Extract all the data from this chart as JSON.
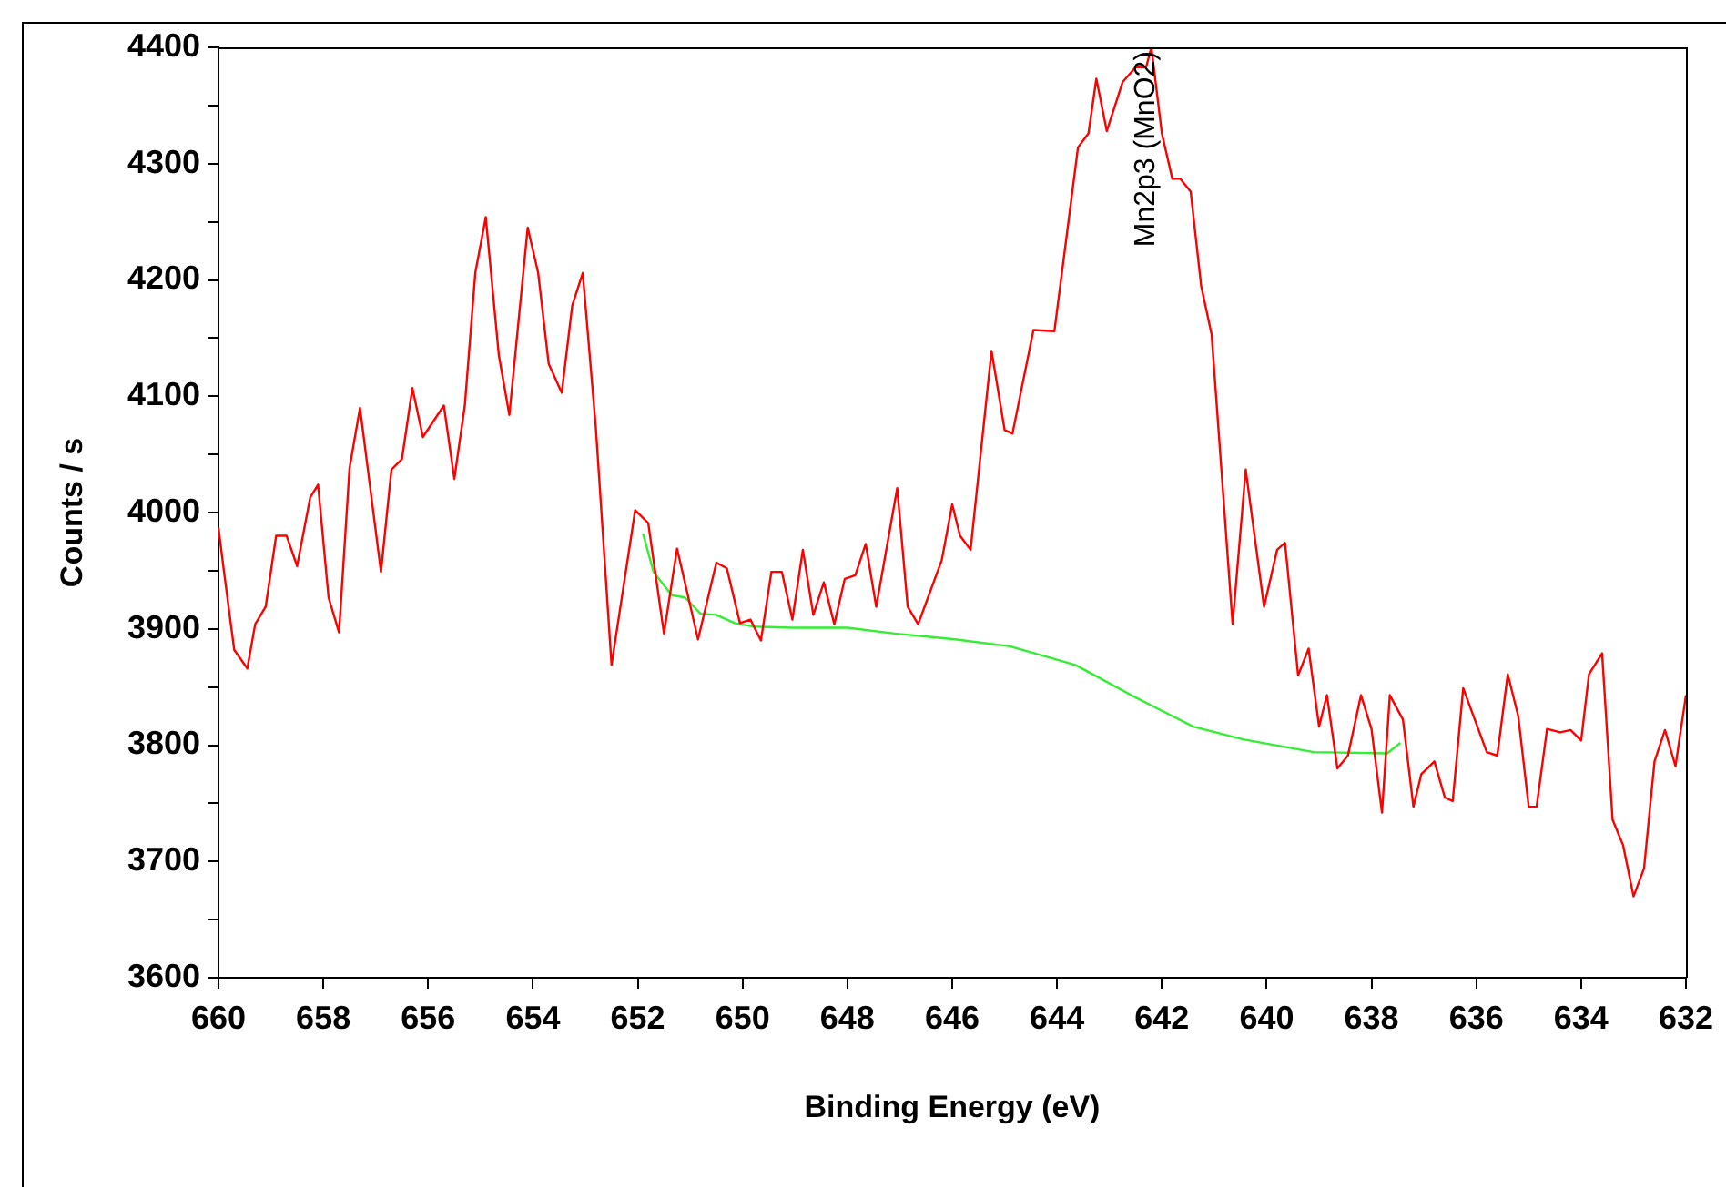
{
  "chart_data": {
    "type": "line",
    "xlabel": "Binding Energy (eV)",
    "ylabel": "Counts / s",
    "xlim": [
      660,
      632
    ],
    "ylim": [
      3600,
      4400
    ],
    "xticks": [
      660,
      658,
      656,
      654,
      652,
      650,
      648,
      646,
      644,
      642,
      640,
      638,
      636,
      634,
      632
    ],
    "yticks": [
      3600,
      {
        "value": 3650,
        "label": null
      },
      3700,
      {
        "value": 3750,
        "label": null
      },
      3800,
      {
        "value": 3850,
        "label": null
      },
      3900,
      {
        "value": 3950,
        "label": null
      },
      4000,
      {
        "value": 4050,
        "label": null
      },
      4100,
      {
        "value": 4150,
        "label": null
      },
      4200,
      {
        "value": 4250,
        "label": null
      },
      4300,
      {
        "value": 4350,
        "label": null
      },
      4400
    ],
    "grid": false,
    "legend": false,
    "marker": "none",
    "line_style": "solid",
    "annotations": [
      {
        "text": "Mn2p3 (MnO2)",
        "x": 642.3,
        "y": 4400
      }
    ],
    "series": [
      {
        "color": "#ff0000",
        "x": [
          660,
          659.9,
          659.7,
          659.45,
          659.3,
          659.1,
          658.9,
          658.7,
          658.5,
          658.25,
          658.1,
          657.9,
          657.7,
          657.5,
          657.3,
          656.9,
          656.7,
          656.5,
          656.3,
          656.1,
          655.7,
          655.5,
          655.3,
          655.1,
          654.9,
          654.65,
          654.45,
          654.1,
          653.9,
          653.7,
          653.45,
          653.25,
          653.05,
          652.8,
          652.5,
          652.05,
          651.8,
          651.5,
          651.25,
          650.85,
          650.5,
          650.3,
          650.05,
          649.85,
          649.65,
          649.45,
          649.25,
          649.05,
          648.85,
          648.65,
          648.45,
          648.25,
          648.05,
          647.85,
          647.65,
          647.45,
          647.05,
          646.85,
          646.65,
          646.2,
          646.0,
          645.85,
          645.65,
          645.25,
          645.0,
          644.85,
          644.45,
          644.05,
          643.6,
          643.4,
          643.25,
          643.05,
          642.75,
          642.5,
          642.3,
          642.2,
          642.0,
          641.8,
          641.65,
          641.45,
          641.25,
          641.05,
          640.65,
          640.4,
          640.05,
          639.8,
          639.65,
          639.4,
          639.2,
          639.0,
          638.85,
          638.65,
          638.45,
          638.2,
          638.0,
          637.8,
          637.65,
          637.4,
          637.2,
          637.05,
          636.8,
          636.6,
          636.45,
          636.25,
          635.8,
          635.6,
          635.4,
          635.2,
          635.0,
          634.85,
          634.65,
          634.4,
          634.2,
          634.0,
          633.85,
          633.6,
          633.4,
          633.2,
          633.0,
          632.8,
          632.6,
          632.4,
          632.2,
          632.0
        ],
        "values": [
          3987,
          3951,
          3882,
          3866,
          3904,
          3919,
          3980,
          3980,
          3954,
          4013,
          4024,
          3927,
          3897,
          4038,
          4090,
          3949,
          4037,
          4046,
          4107,
          4065,
          4092,
          4029,
          4092,
          4206,
          4254,
          4135,
          4084,
          4245,
          4206,
          4128,
          4103,
          4178,
          4206,
          4073,
          3869,
          4002,
          3991,
          3896,
          3969,
          3891,
          3957,
          3952,
          3905,
          3908,
          3890,
          3949,
          3949,
          3908,
          3968,
          3912,
          3940,
          3904,
          3943,
          3946,
          3973,
          3919,
          4021,
          3919,
          3904,
          3959,
          4007,
          3980,
          3968,
          4139,
          4071,
          4068,
          4157,
          4156,
          4314,
          4326,
          4373,
          4328,
          4370,
          4383,
          4383,
          4400,
          4326,
          4287,
          4287,
          4276,
          4195,
          4153,
          3904,
          4037,
          3919,
          3968,
          3974,
          3860,
          3883,
          3816,
          3843,
          3780,
          3791,
          3843,
          3814,
          3742,
          3843,
          3822,
          3747,
          3775,
          3786,
          3755,
          3752,
          3849,
          3794,
          3791,
          3861,
          3825,
          3747,
          3747,
          3814,
          3811,
          3813,
          3804,
          3861,
          3879,
          3736,
          3714,
          3670,
          3694,
          3786,
          3813,
          3782,
          3843
        ]
      },
      {
        "color": "#33ee33",
        "x": [
          651.9,
          651.7,
          651.35,
          651.1,
          650.8,
          650.5,
          650.15,
          649.8,
          649.05,
          648.0,
          647.1,
          645.95,
          644.9,
          643.65,
          642.5,
          641.4,
          640.45,
          639.1,
          637.7,
          637.45
        ],
        "values": [
          3982,
          3949,
          3929,
          3927,
          3913,
          3912,
          3905,
          3902,
          3901,
          3901,
          3896,
          3891,
          3885,
          3869,
          3841,
          3816,
          3805,
          3794,
          3793,
          3802
        ]
      }
    ]
  }
}
